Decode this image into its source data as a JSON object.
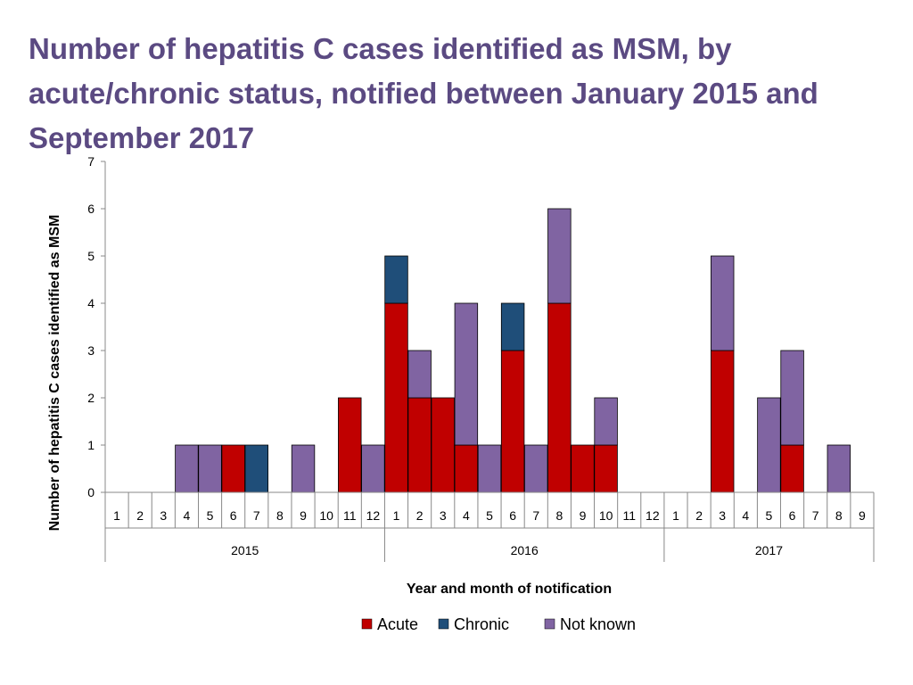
{
  "chart_data": {
    "type": "bar",
    "stacked": true,
    "title": "Number of hepatitis C cases identified as MSM, by acute/chronic status, notified between January 2015 and September 2017",
    "xlabel": "Year and month of notification",
    "ylabel": "Number of hepatitis C cases identified as MSM",
    "ylim": [
      0,
      7
    ],
    "yticks": [
      "0",
      "1",
      "2",
      "3",
      "4",
      "5",
      "6",
      "7"
    ],
    "month_labels": [
      "1",
      "2",
      "3",
      "4",
      "5",
      "6",
      "7",
      "8",
      "9",
      "10",
      "11",
      "12",
      "1",
      "2",
      "3",
      "4",
      "5",
      "6",
      "7",
      "8",
      "9",
      "10",
      "11",
      "12",
      "1",
      "2",
      "3",
      "4",
      "5",
      "6",
      "7",
      "8",
      "9"
    ],
    "years": [
      {
        "label": "2015",
        "months": 12
      },
      {
        "label": "2016",
        "months": 12
      },
      {
        "label": "2017",
        "months": 9
      }
    ],
    "legend_position": "bottom",
    "series": [
      {
        "name": "Acute",
        "color": "#c00000",
        "values": [
          0,
          0,
          0,
          0,
          0,
          1,
          0,
          0,
          0,
          0,
          2,
          0,
          4,
          2,
          2,
          1,
          0,
          3,
          0,
          4,
          1,
          1,
          0,
          0,
          0,
          0,
          3,
          0,
          0,
          1,
          0,
          0,
          0
        ]
      },
      {
        "name": "Chronic",
        "color": "#1f4e79",
        "values": [
          0,
          0,
          0,
          0,
          0,
          0,
          1,
          0,
          0,
          0,
          0,
          0,
          1,
          0,
          0,
          0,
          0,
          1,
          0,
          0,
          0,
          0,
          0,
          0,
          0,
          0,
          0,
          0,
          0,
          0,
          0,
          0,
          0
        ]
      },
      {
        "name": "Not known",
        "color": "#8064a2",
        "values": [
          0,
          0,
          0,
          1,
          1,
          0,
          0,
          0,
          1,
          0,
          0,
          1,
          0,
          1,
          0,
          3,
          1,
          0,
          1,
          2,
          0,
          1,
          0,
          0,
          0,
          0,
          2,
          0,
          2,
          2,
          0,
          1,
          0
        ]
      }
    ]
  }
}
